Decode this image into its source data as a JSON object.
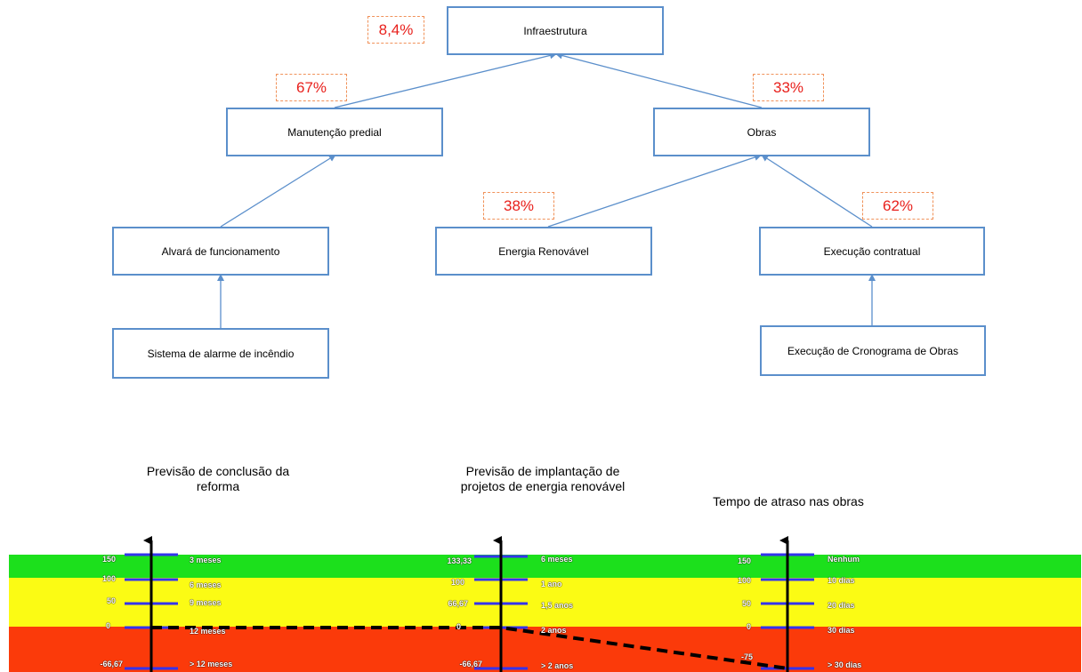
{
  "tree": {
    "root": {
      "label": "Infraestrutura",
      "weight": "8,4%"
    },
    "level1": [
      {
        "label": "Manutenção predial",
        "weight": "67%"
      },
      {
        "label": "Obras",
        "weight": "33%"
      }
    ],
    "level2": [
      {
        "label": "Alvará de funcionamento"
      },
      {
        "label": "Energia Renovável",
        "weight": "38%"
      },
      {
        "label": "Execução contratual",
        "weight": "62%"
      }
    ],
    "level3": [
      {
        "label": "Sistema de alarme de incêndio"
      },
      {
        "label": "Execução de Cronograma de Obras"
      }
    ]
  },
  "scales": [
    {
      "title_line1": "Previsão de conclusão da",
      "title_line2": "reforma",
      "ticks": [
        {
          "value": "150",
          "label": "3 meses"
        },
        {
          "value": "100",
          "label": "6 meses"
        },
        {
          "value": "50",
          "label": "9 meses"
        },
        {
          "value": "0",
          "label": "12 meses"
        },
        {
          "value": "-66,67",
          "label": "> 12 meses"
        }
      ]
    },
    {
      "title_line1": "Previsão de implantação de",
      "title_line2": "projetos de energia renovável",
      "ticks": [
        {
          "value": "133,33",
          "label": "6 meses"
        },
        {
          "value": "100",
          "label": "1 ano"
        },
        {
          "value": "66,67",
          "label": "1,5 anos"
        },
        {
          "value": "0",
          "label": "2 anos"
        },
        {
          "value": "-66,67",
          "label": "> 2 anos"
        }
      ]
    },
    {
      "title_line1": "Tempo de atraso nas obras",
      "ticks": [
        {
          "value": "150",
          "label": "Nenhum"
        },
        {
          "value": "100",
          "label": "10 dias"
        },
        {
          "value": "50",
          "label": "20 dias"
        },
        {
          "value": "0",
          "label": "30 dias"
        },
        {
          "value": "-75",
          "label": ""
        },
        {
          "value": "",
          "label": "> 30 dias"
        }
      ]
    }
  ],
  "profile_values": [
    0,
    0,
    -75
  ],
  "colors": {
    "node_border": "#5b8fcb",
    "weight_text": "#e8201c",
    "weight_border": "#f0925a",
    "band_green": "#1ce01c",
    "band_yellow": "#fbfb14",
    "band_red": "#fb3a0a",
    "tick_line": "#3333ee"
  }
}
